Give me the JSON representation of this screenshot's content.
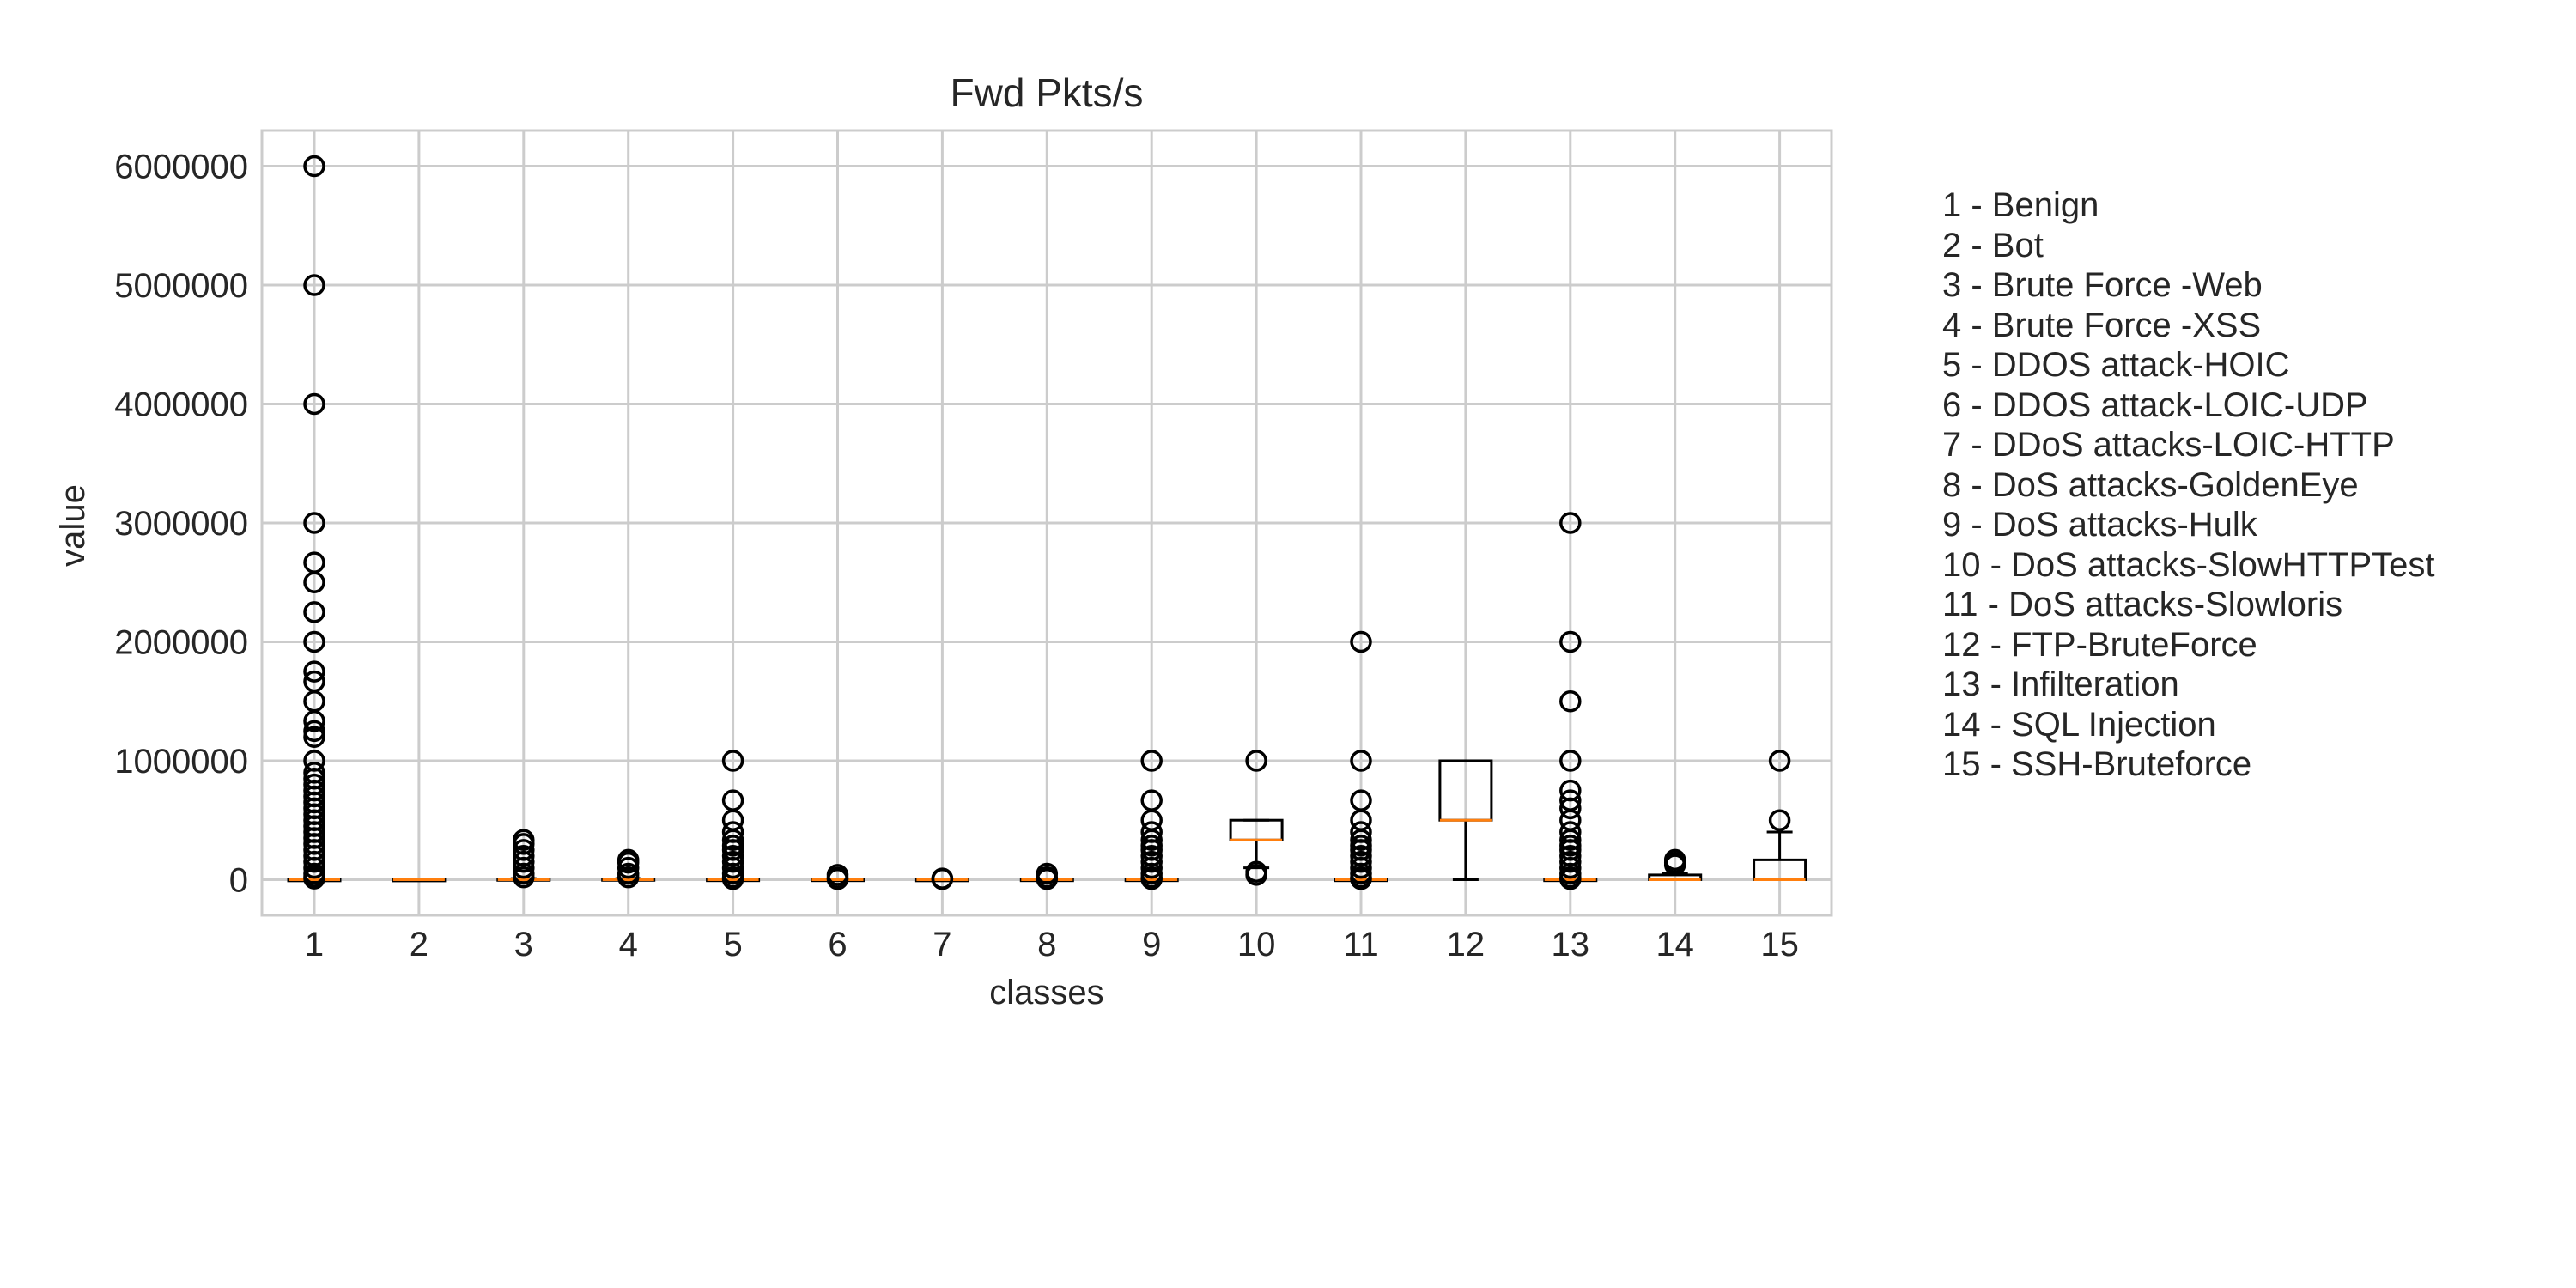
{
  "chart_data": {
    "type": "box",
    "title": "Fwd Pkts/s",
    "xlabel": "classes",
    "ylabel": "value",
    "ylim": [
      -300000,
      6300000
    ],
    "yticks": [
      0,
      1000000,
      2000000,
      3000000,
      4000000,
      5000000,
      6000000
    ],
    "ytick_labels": [
      "0",
      "1000000",
      "2000000",
      "3000000",
      "4000000",
      "5000000",
      "6000000"
    ],
    "categories": [
      "1",
      "2",
      "3",
      "4",
      "5",
      "6",
      "7",
      "8",
      "9",
      "10",
      "11",
      "12",
      "13",
      "14",
      "15"
    ],
    "grid": true,
    "series": [
      {
        "q1": 0,
        "median": 0,
        "q3": 1000,
        "whisker_low": 0,
        "whisker_high": 2000,
        "outliers": [
          6000000,
          5000000,
          4000000,
          3000000,
          2666667,
          2500000,
          2250000,
          2000000,
          1750000,
          1666667,
          1500000,
          1333333,
          1250000,
          1200000,
          1000000,
          900000,
          850000,
          800000,
          750000,
          700000,
          650000,
          600000,
          550000,
          500000,
          450000,
          400000,
          350000,
          300000,
          250000,
          200000,
          150000,
          100000,
          50000,
          25000,
          10000
        ]
      },
      {
        "q1": 0,
        "median": 0,
        "q3": 500,
        "whisker_low": 0,
        "whisker_high": 1000,
        "outliers": []
      },
      {
        "q1": 0,
        "median": 0,
        "q3": 5000,
        "whisker_low": 0,
        "whisker_high": 10000,
        "outliers": [
          333333,
          300000,
          250000,
          200000,
          150000,
          100000,
          50000,
          20000
        ]
      },
      {
        "q1": 0,
        "median": 0,
        "q3": 5000,
        "whisker_low": 0,
        "whisker_high": 10000,
        "outliers": [
          166667,
          142857,
          100000,
          50000,
          20000
        ]
      },
      {
        "q1": 0,
        "median": 0,
        "q3": 2000,
        "whisker_low": 0,
        "whisker_high": 3000,
        "outliers": [
          1000000,
          666667,
          500000,
          400000,
          333333,
          285714,
          250000,
          200000,
          150000,
          100000,
          50000,
          20000,
          5000
        ]
      },
      {
        "q1": 0,
        "median": 0,
        "q3": 2000,
        "whisker_low": 0,
        "whisker_high": 4000,
        "outliers": [
          40000,
          15000,
          5000
        ]
      },
      {
        "q1": 0,
        "median": 0,
        "q3": 1000,
        "whisker_low": 0,
        "whisker_high": 2000,
        "outliers": [
          10000,
          5000
        ]
      },
      {
        "q1": 0,
        "median": 0,
        "q3": 2000,
        "whisker_low": 0,
        "whisker_high": 4000,
        "outliers": [
          50000,
          20000,
          5000
        ]
      },
      {
        "q1": 0,
        "median": 0,
        "q3": 2000,
        "whisker_low": 0,
        "whisker_high": 3000,
        "outliers": [
          1000000,
          666667,
          500000,
          400000,
          333333,
          285714,
          250000,
          200000,
          150000,
          100000,
          50000,
          20000,
          5000
        ]
      },
      {
        "q1": 333333,
        "median": 333333,
        "q3": 500000,
        "whisker_low": 100000,
        "whisker_high": 500000,
        "outliers": [
          1000000,
          66667,
          40000
        ]
      },
      {
        "q1": 0,
        "median": 0,
        "q3": 2000,
        "whisker_low": 0,
        "whisker_high": 3000,
        "outliers": [
          2000000,
          1000000,
          666667,
          500000,
          400000,
          333333,
          285714,
          250000,
          200000,
          150000,
          100000,
          50000,
          20000,
          5000
        ]
      },
      {
        "q1": 500000,
        "median": 500000,
        "q3": 1000000,
        "whisker_low": 0,
        "whisker_high": 1000000,
        "outliers": []
      },
      {
        "q1": 0,
        "median": 0,
        "q3": 2000,
        "whisker_low": 0,
        "whisker_high": 3000,
        "outliers": [
          3000000,
          2000000,
          1500000,
          1000000,
          750000,
          666667,
          600000,
          500000,
          400000,
          333333,
          285714,
          250000,
          200000,
          150000,
          100000,
          50000,
          20000,
          5000
        ]
      },
      {
        "q1": 0,
        "median": 0,
        "q3": 40000,
        "whisker_low": 0,
        "whisker_high": 50000,
        "outliers": [
          166667,
          142857,
          125000
        ]
      },
      {
        "q1": 0,
        "median": 0,
        "q3": 166667,
        "whisker_low": 0,
        "whisker_high": 400000,
        "outliers": [
          1000000,
          500000
        ]
      }
    ],
    "legend": {
      "placement": "right",
      "entries": [
        "1 - Benign",
        "2 - Bot",
        "3 - Brute Force -Web",
        "4 - Brute Force -XSS",
        "5 - DDOS attack-HOIC",
        "6 - DDOS attack-LOIC-UDP",
        "7 - DDoS attacks-LOIC-HTTP",
        "8 - DoS attacks-GoldenEye",
        "9 - DoS attacks-Hulk",
        "10 - DoS attacks-SlowHTTPTest",
        "11 - DoS attacks-Slowloris",
        "12 - FTP-BruteForce",
        "13 - Infilteration",
        "14 - SQL Injection",
        "15 - SSH-Bruteforce"
      ]
    },
    "colors": {
      "box": "#000000",
      "median": "#ff7f0e",
      "grid": "#cccccc",
      "frame": "#cccccc"
    }
  }
}
